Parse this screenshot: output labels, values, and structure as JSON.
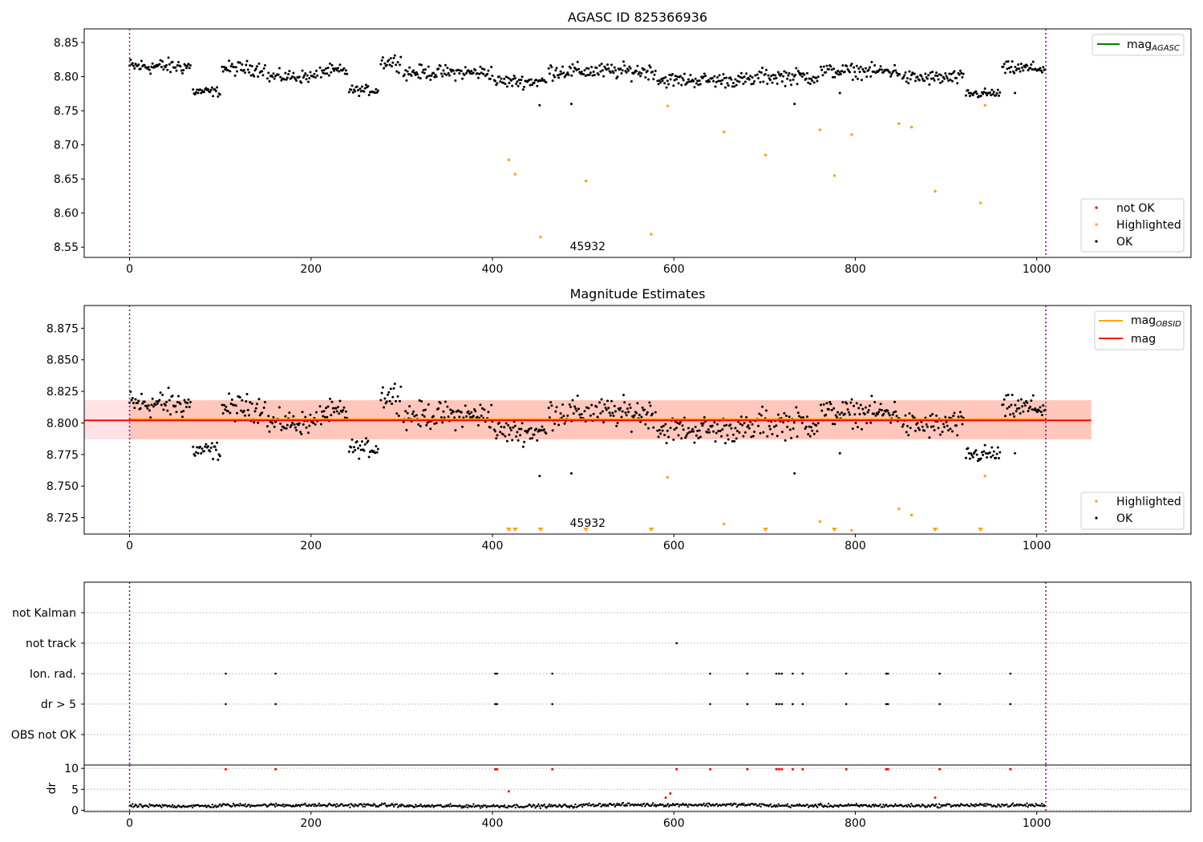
{
  "chart_data": [
    {
      "type": "scatter",
      "title": "AGASC ID 825366936",
      "xlim": [
        -50,
        1170
      ],
      "ylim": [
        8.535,
        8.87
      ],
      "x_ticks": [
        0,
        200,
        400,
        600,
        800,
        1000
      ],
      "y_ticks": [
        8.55,
        8.6,
        8.65,
        8.7,
        8.75,
        8.8,
        8.85
      ],
      "y_tick_labels": [
        "8.55",
        "8.60",
        "8.65",
        "8.70",
        "8.75",
        "8.80",
        "8.85"
      ],
      "vlines": [
        0,
        1010
      ],
      "annotation": {
        "text": "45932",
        "x": 505
      },
      "legend_top": {
        "position": "upper right",
        "entries": [
          {
            "label": "mag",
            "sub": "AGASC",
            "color": "#008000"
          }
        ]
      },
      "legend_bottom": {
        "position": "lower right",
        "entries": [
          {
            "label": "not OK",
            "color": "#ff0000"
          },
          {
            "label": "Highlighted",
            "color": "#ffa500"
          },
          {
            "label": "OK",
            "color": "#000000"
          }
        ]
      },
      "highlighted": {
        "x": [
          418,
          425,
          453,
          503,
          575,
          593,
          655,
          701,
          761,
          777,
          796,
          848,
          862,
          888,
          938,
          943
        ],
        "y": [
          8.678,
          8.657,
          8.565,
          8.647,
          8.569,
          8.757,
          8.719,
          8.685,
          8.722,
          8.655,
          8.715,
          8.731,
          8.726,
          8.632,
          8.615,
          8.758
        ]
      },
      "ok_segments": [
        [
          0,
          68,
          8.815,
          0.01
        ],
        [
          70,
          100,
          8.778,
          0.006
        ],
        [
          102,
          150,
          8.812,
          0.009
        ],
        [
          152,
          208,
          8.8,
          0.008
        ],
        [
          210,
          240,
          8.808,
          0.008
        ],
        [
          242,
          275,
          8.78,
          0.006
        ],
        [
          277,
          300,
          8.822,
          0.01
        ],
        [
          302,
          400,
          8.806,
          0.009
        ],
        [
          402,
          460,
          8.793,
          0.008
        ],
        [
          462,
          580,
          8.808,
          0.01
        ],
        [
          582,
          690,
          8.795,
          0.009
        ],
        [
          692,
          760,
          8.8,
          0.01
        ],
        [
          762,
          850,
          8.808,
          0.009
        ],
        [
          852,
          920,
          8.798,
          0.009
        ],
        [
          922,
          960,
          8.775,
          0.006
        ],
        [
          962,
          1010,
          8.812,
          0.008
        ]
      ]
    },
    {
      "type": "scatter",
      "title": "Magnitude Estimates",
      "xlim": [
        -50,
        1170
      ],
      "ylim": [
        8.712,
        8.893
      ],
      "x_ticks": [
        0,
        200,
        400,
        600,
        800,
        1000
      ],
      "y_ticks": [
        8.725,
        8.75,
        8.775,
        8.8,
        8.825,
        8.85,
        8.875
      ],
      "y_tick_labels": [
        "8.725",
        "8.750",
        "8.775",
        "8.800",
        "8.825",
        "8.850",
        "8.875"
      ],
      "vlines": [
        0,
        1010
      ],
      "annotation": {
        "text": "45932",
        "x": 505
      },
      "mag": 8.802,
      "mag_obsid": 8.803,
      "band_mag": {
        "x0": -50,
        "x1": 1060,
        "y0": 8.787,
        "y1": 8.818,
        "color": "#ffb3c1"
      },
      "band_obsid": {
        "x0": 0,
        "x1": 1060,
        "y0": 8.787,
        "y1": 8.818,
        "color": "#ffa07a"
      },
      "legend_top": {
        "position": "upper right",
        "entries": [
          {
            "label": "mag",
            "sub": "OBSID",
            "color": "#ffa500"
          },
          {
            "label": "mag",
            "sub": "",
            "color": "#ff0000"
          }
        ]
      },
      "legend_bottom": {
        "position": "lower right",
        "entries": [
          {
            "label": "Highlighted",
            "color": "#ffa500"
          },
          {
            "label": "OK",
            "color": "#000000"
          }
        ]
      },
      "highlighted": {
        "x": [
          593,
          655,
          761,
          796,
          848,
          862,
          943
        ],
        "y": [
          8.757,
          8.72,
          8.722,
          8.715,
          8.732,
          8.727,
          8.758
        ]
      },
      "below_markers_x": [
        418,
        425,
        453,
        503,
        575,
        701,
        777,
        888,
        938
      ]
    },
    {
      "type": "scatter",
      "title": "",
      "xlim": [
        -50,
        1170
      ],
      "categories": [
        "not Kalman",
        "not track",
        "Ion. rad.",
        "dr > 5",
        "OBS not OK"
      ],
      "vlines": [
        0,
        1010
      ],
      "flags": {
        "not track": [
          603
        ],
        "Ion. rad.": [
          106,
          161,
          403,
          405,
          466,
          640,
          681,
          713,
          716,
          719,
          731,
          742,
          790,
          834,
          836,
          893,
          971
        ],
        "dr > 5": [
          106,
          161,
          403,
          405,
          466,
          640,
          681,
          713,
          716,
          719,
          731,
          742,
          790,
          834,
          836,
          893,
          971
        ]
      }
    },
    {
      "type": "scatter",
      "title": "",
      "xlim": [
        -50,
        1170
      ],
      "ylim": [
        -0.3,
        10.8
      ],
      "ylabel": "dr",
      "x_ticks": [
        0,
        200,
        400,
        600,
        800,
        1000
      ],
      "y_ticks": [
        0,
        5,
        10
      ],
      "y_tick_labels": [
        "0",
        "5",
        "10"
      ],
      "vlines": [
        0,
        1010
      ],
      "baseline": [
        [
          0,
          100,
          1.0
        ],
        [
          100,
          300,
          1.2
        ],
        [
          300,
          500,
          1.0
        ],
        [
          500,
          700,
          1.3
        ],
        [
          700,
          900,
          1.1
        ],
        [
          900,
          1010,
          1.2
        ]
      ],
      "red_points": {
        "x": [
          106,
          161,
          403,
          405,
          418,
          466,
          591,
          596,
          603,
          640,
          681,
          713,
          716,
          719,
          731,
          742,
          790,
          834,
          836,
          888,
          893,
          971
        ],
        "y": [
          9.8,
          9.8,
          9.8,
          9.8,
          4.5,
          9.8,
          3.0,
          4.0,
          9.8,
          9.8,
          9.8,
          9.8,
          9.8,
          9.8,
          9.8,
          9.8,
          9.8,
          9.8,
          9.8,
          3.0,
          9.8,
          9.8
        ]
      }
    }
  ]
}
